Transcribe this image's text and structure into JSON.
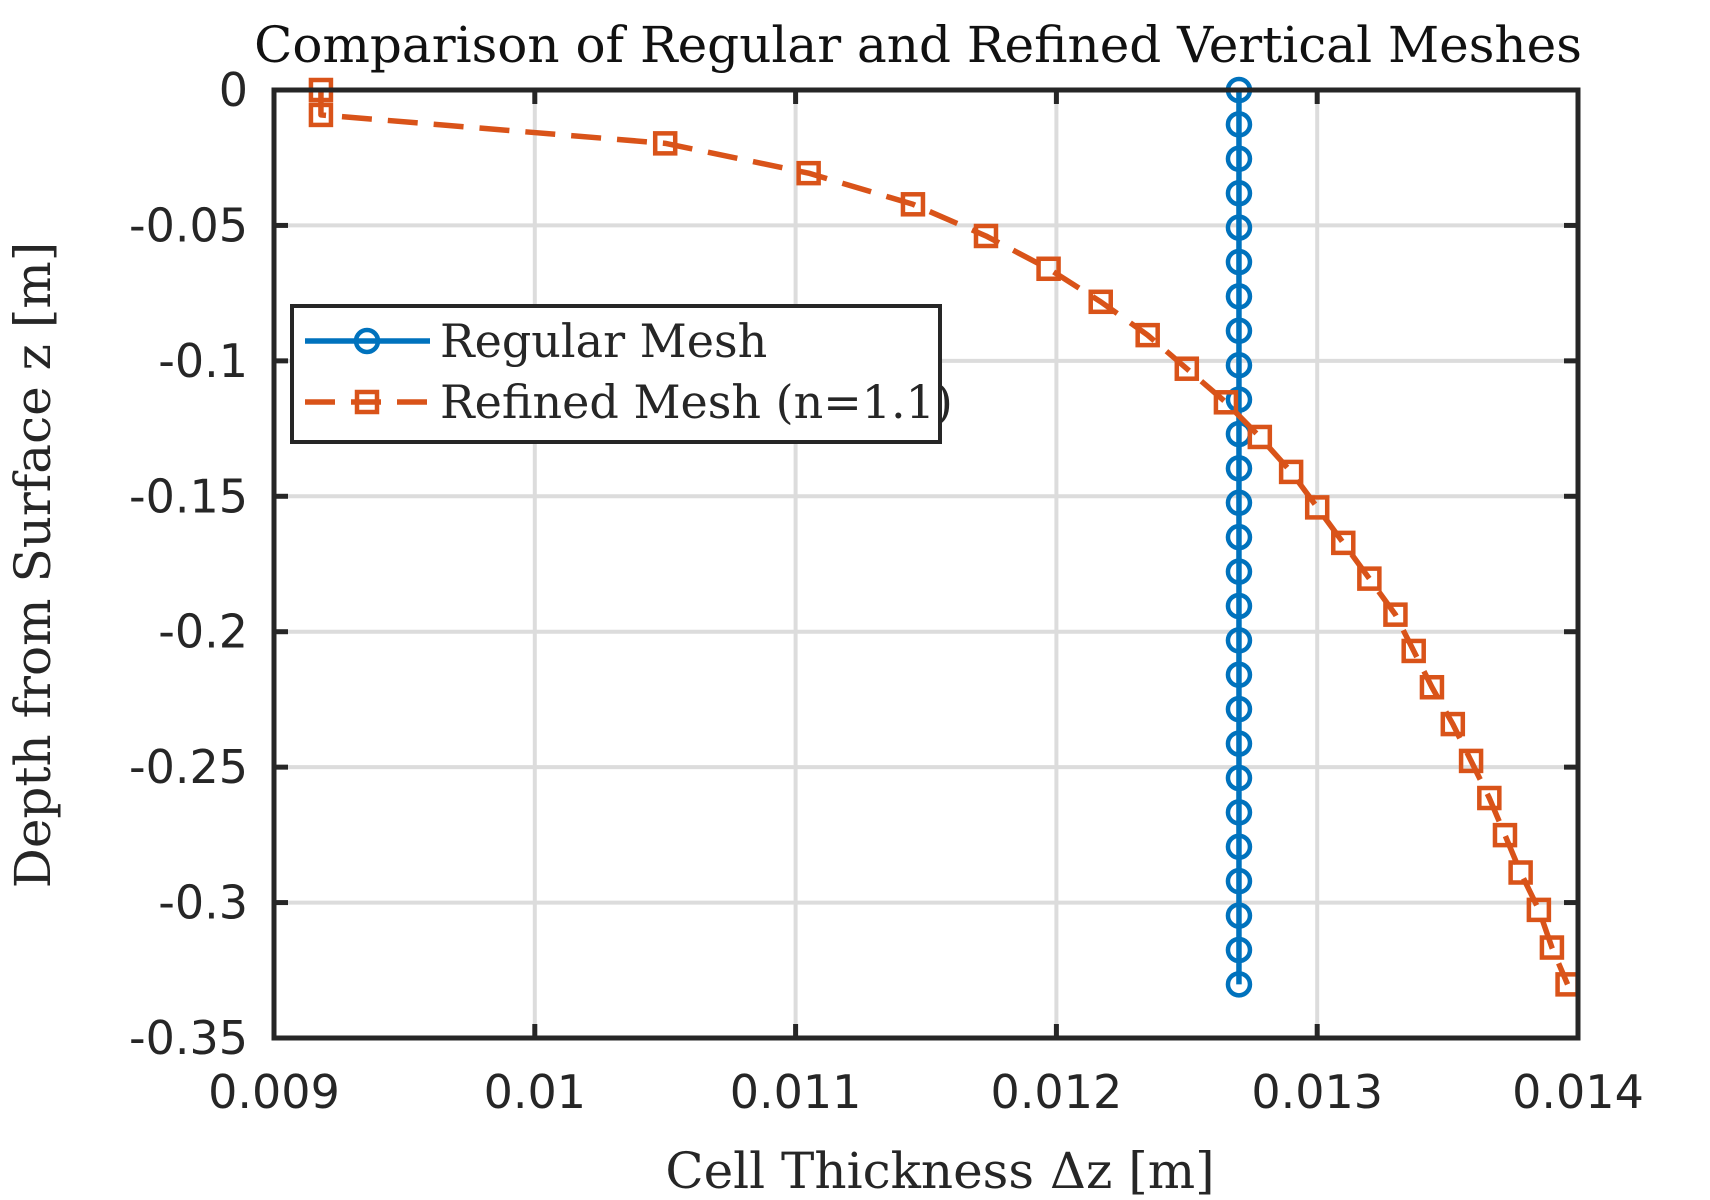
{
  "chart_data": {
    "type": "line",
    "title": "Comparison of Regular and Refined Vertical Meshes",
    "xlabel": "Cell Thickness Δz [m]",
    "ylabel": "Depth from Surface z [m]",
    "xlim": [
      0.009,
      0.014
    ],
    "ylim": [
      -0.35,
      0
    ],
    "xticks": [
      0.009,
      0.01,
      0.011,
      0.012,
      0.013,
      0.014
    ],
    "xtick_labels": [
      "0.009",
      "0.01",
      "0.011",
      "0.012",
      "0.013",
      "0.014"
    ],
    "yticks": [
      0,
      -0.05,
      -0.1,
      -0.15,
      -0.2,
      -0.25,
      -0.3,
      -0.35
    ],
    "ytick_labels": [
      "0",
      "-0.05",
      "-0.1",
      "-0.15",
      "-0.2",
      "-0.25",
      "-0.3",
      "-0.35"
    ],
    "grid": true,
    "legend_position": "upper-left",
    "series": [
      {
        "name": "Regular Mesh",
        "color": "#0072BD",
        "line_style": "solid",
        "marker": "circle",
        "x": [
          0.0127,
          0.0127,
          0.0127,
          0.0127,
          0.0127,
          0.0127,
          0.0127,
          0.0127,
          0.0127,
          0.0127,
          0.0127,
          0.0127,
          0.0127,
          0.0127,
          0.0127,
          0.0127,
          0.0127,
          0.0127,
          0.0127,
          0.0127,
          0.0127,
          0.0127,
          0.0127,
          0.0127,
          0.0127,
          0.0127,
          0.0127
        ],
        "y": [
          0,
          -0.0127,
          -0.0254,
          -0.0381,
          -0.0508,
          -0.0635,
          -0.0762,
          -0.0889,
          -0.1016,
          -0.1143,
          -0.127,
          -0.1397,
          -0.1524,
          -0.1651,
          -0.1778,
          -0.1905,
          -0.2032,
          -0.2159,
          -0.2286,
          -0.2413,
          -0.254,
          -0.2667,
          -0.2794,
          -0.2921,
          -0.3048,
          -0.3175,
          -0.3302
        ]
      },
      {
        "name": "Refined Mesh (n=1.1)",
        "color": "#D95319",
        "line_style": "dashed",
        "marker": "square",
        "x": [
          0.00918,
          0.00918,
          0.0105,
          0.01105,
          0.01145,
          0.01173,
          0.01197,
          0.01217,
          0.01235,
          0.0125,
          0.01265,
          0.01278,
          0.0129,
          0.013,
          0.0131,
          0.0132,
          0.0133,
          0.01337,
          0.01344,
          0.01352,
          0.01359,
          0.01366,
          0.01372,
          0.01378,
          0.01385,
          0.0139,
          0.01396
        ],
        "y": [
          0,
          -0.0092,
          -0.0197,
          -0.0307,
          -0.0422,
          -0.0539,
          -0.066,
          -0.0782,
          -0.0905,
          -0.1029,
          -0.1153,
          -0.1281,
          -0.141,
          -0.1541,
          -0.1672,
          -0.1804,
          -0.1937,
          -0.2071,
          -0.2205,
          -0.2341,
          -0.2477,
          -0.2614,
          -0.2751,
          -0.2889,
          -0.3027,
          -0.3166,
          -0.3302
        ]
      }
    ]
  }
}
